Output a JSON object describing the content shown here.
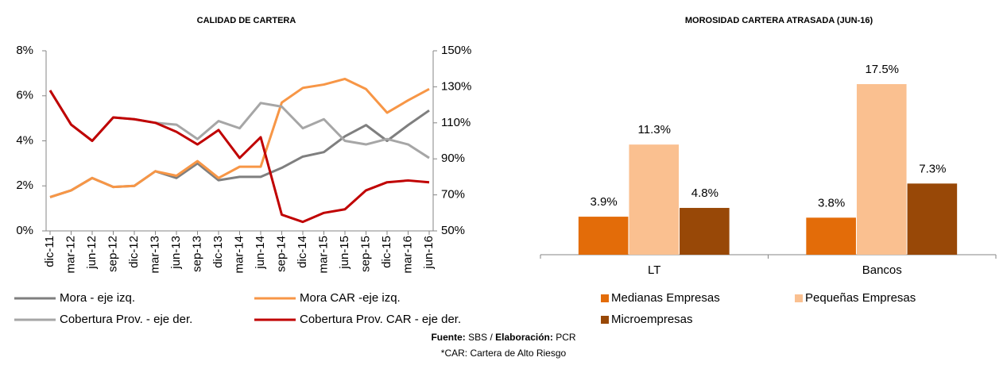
{
  "chart_data": [
    {
      "type": "line",
      "title": "CALIDAD DE CARTERA",
      "categories": [
        "dic-11",
        "mar-12",
        "jun-12",
        "sep-12",
        "dic-12",
        "mar-13",
        "jun-13",
        "sep-13",
        "dic-13",
        "mar-14",
        "jun-14",
        "sep-14",
        "dic-14",
        "mar-15",
        "jun-15",
        "sep-15",
        "dic-15",
        "mar-16",
        "jun-16"
      ],
      "series": [
        {
          "name": "Mora - eje izq.",
          "color": "#7f7f7f",
          "values": [
            1.5,
            1.8,
            2.35,
            1.95,
            2.0,
            2.65,
            2.35,
            3.0,
            2.25,
            2.4,
            2.4,
            2.8,
            3.3,
            3.5,
            4.2,
            4.7,
            4.0,
            4.7,
            5.35
          ]
        },
        {
          "name": "Mora CAR -eje izq.",
          "color": "#f79646",
          "values": [
            1.5,
            1.8,
            2.35,
            1.95,
            2.0,
            2.65,
            2.45,
            3.1,
            2.35,
            2.85,
            2.85,
            5.7,
            6.35,
            6.5,
            6.75,
            6.3,
            5.25,
            5.8,
            6.3
          ]
        },
        {
          "name": "Cobertura Prov. - eje der.",
          "color": "#a6a6a6",
          "axis": "y2",
          "values": [
            128,
            109,
            100,
            113,
            112,
            110,
            109,
            101,
            111,
            107,
            121,
            119,
            107,
            112,
            100,
            98,
            101,
            98,
            90.5
          ]
        },
        {
          "name": "Cobertura Prov. CAR - eje der.",
          "color": "#c00000",
          "axis": "y2",
          "values": [
            128,
            109,
            100,
            113,
            112,
            110,
            105,
            98,
            106,
            90.5,
            102,
            59,
            55,
            60,
            62,
            72.5,
            77,
            78,
            77
          ]
        }
      ],
      "ylim": [
        0,
        8
      ],
      "yticks": [
        {
          "value": 0,
          "label": "0%"
        },
        {
          "value": 2,
          "label": "2%"
        },
        {
          "value": 4,
          "label": "4%"
        },
        {
          "value": 6,
          "label": "6%"
        },
        {
          "value": 8,
          "label": "8%"
        }
      ],
      "y2lim": [
        50,
        150
      ],
      "y2ticks": [
        {
          "value": 50,
          "label": "50%"
        },
        {
          "value": 70,
          "label": "70%"
        },
        {
          "value": 90,
          "label": "90%"
        },
        {
          "value": 110,
          "label": "110%"
        },
        {
          "value": 130,
          "label": "130%"
        },
        {
          "value": 150,
          "label": "150%"
        }
      ]
    },
    {
      "type": "bar",
      "title": "MOROSIDAD CARTERA ATRASADA (JUN-16)",
      "categories": [
        "LT",
        "Bancos"
      ],
      "series": [
        {
          "name": "Medianas Empresas",
          "color": "#e36c09",
          "values": [
            3.9,
            3.8
          ],
          "value_labels": [
            "3.9%",
            "3.8%"
          ]
        },
        {
          "name": "Pequeñas Empresas",
          "color": "#fac090",
          "values": [
            11.3,
            17.5
          ],
          "value_labels": [
            "11.3%",
            "17.5%"
          ]
        },
        {
          "name": "Microempresas",
          "color": "#984807",
          "values": [
            4.8,
            7.3
          ],
          "value_labels": [
            "4.8%",
            "7.3%"
          ]
        }
      ]
    }
  ],
  "footer": {
    "source_label": "Fuente:",
    "source": "SBS /",
    "prepared_label": "Elaboración:",
    "prepared": "PCR",
    "note": "*CAR: Cartera de Alto Riesgo"
  }
}
